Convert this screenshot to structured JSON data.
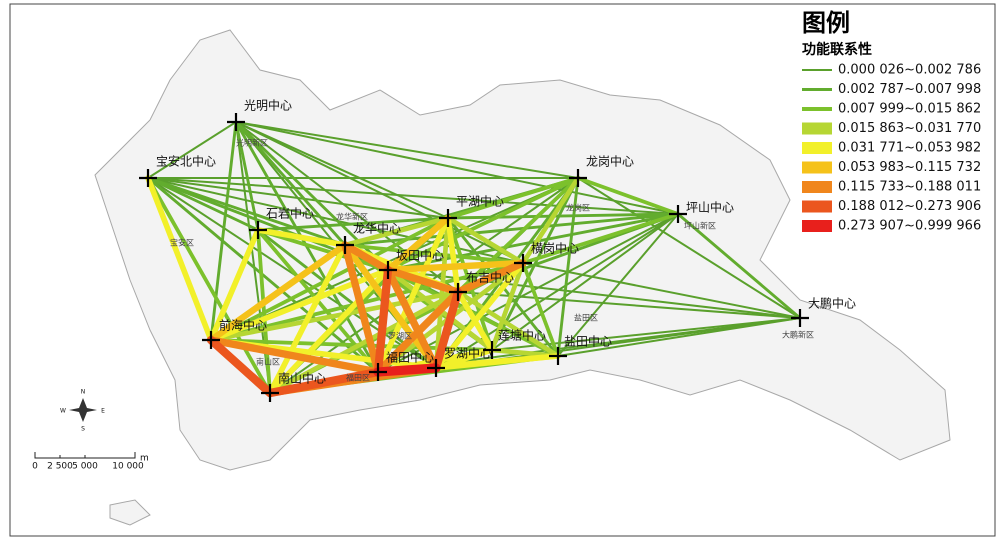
{
  "legend": {
    "title": "图例",
    "subtitle": "功能联系性",
    "items": [
      {
        "label": "0.000 026~0.002 786",
        "color": "#5aa02c"
      },
      {
        "label": "0.002 787~0.007 998",
        "color": "#62ac2e"
      },
      {
        "label": "0.007 999~0.015 862",
        "color": "#7cc12c"
      },
      {
        "label": "0.015 863~0.031 770",
        "color": "#b6d633"
      },
      {
        "label": "0.031 771~0.053 982",
        "color": "#f2f02a"
      },
      {
        "label": "0.053 983~0.115 732",
        "color": "#f5c21a"
      },
      {
        "label": "0.115 733~0.188 011",
        "color": "#f0861c"
      },
      {
        "label": "0.188 012~0.273 906",
        "color": "#eb561e"
      },
      {
        "label": "0.273 907~0.999 966",
        "color": "#e8201c"
      }
    ]
  },
  "nodes": [
    "光明中心",
    "宝安北中心",
    "石岩中心",
    "龙华中心",
    "平湖中心",
    "龙岗中心",
    "坪山中心",
    "坂田中心",
    "布吉中心",
    "横岗中心",
    "前海中心",
    "南山中心",
    "福田中心",
    "罗湖中心",
    "莲塘中心",
    "盐田中心",
    "大鹏中心"
  ],
  "districts": [
    "光明新区",
    "宝安区",
    "龙华新区",
    "龙岗区",
    "坪山新区",
    "大鹏新区",
    "盐田区",
    "罗湖区",
    "福田区",
    "南山区"
  ],
  "links": [
    [
      0,
      1,
      0
    ],
    [
      0,
      2,
      1
    ],
    [
      0,
      3,
      1
    ],
    [
      0,
      4,
      0
    ],
    [
      0,
      5,
      0
    ],
    [
      0,
      6,
      0
    ],
    [
      0,
      7,
      1
    ],
    [
      0,
      10,
      1
    ],
    [
      0,
      11,
      0
    ],
    [
      0,
      12,
      1
    ],
    [
      0,
      13,
      0
    ],
    [
      0,
      9,
      0
    ],
    [
      0,
      8,
      0
    ],
    [
      1,
      2,
      1
    ],
    [
      1,
      3,
      1
    ],
    [
      1,
      4,
      0
    ],
    [
      1,
      5,
      0
    ],
    [
      1,
      6,
      0
    ],
    [
      1,
      10,
      4
    ],
    [
      1,
      11,
      2
    ],
    [
      1,
      12,
      1
    ],
    [
      1,
      7,
      1
    ],
    [
      1,
      13,
      0
    ],
    [
      1,
      9,
      0
    ],
    [
      2,
      3,
      4
    ],
    [
      2,
      10,
      4
    ],
    [
      2,
      11,
      2
    ],
    [
      2,
      12,
      2
    ],
    [
      2,
      7,
      2
    ],
    [
      2,
      4,
      1
    ],
    [
      2,
      13,
      1
    ],
    [
      2,
      8,
      1
    ],
    [
      3,
      7,
      6
    ],
    [
      3,
      12,
      6
    ],
    [
      3,
      10,
      5
    ],
    [
      3,
      11,
      4
    ],
    [
      3,
      13,
      5
    ],
    [
      3,
      4,
      3
    ],
    [
      3,
      8,
      4
    ],
    [
      3,
      9,
      2
    ],
    [
      3,
      14,
      2
    ],
    [
      3,
      5,
      1
    ],
    [
      3,
      6,
      1
    ],
    [
      3,
      15,
      1
    ],
    [
      4,
      7,
      5
    ],
    [
      4,
      8,
      4
    ],
    [
      4,
      12,
      4
    ],
    [
      4,
      13,
      3
    ],
    [
      4,
      9,
      3
    ],
    [
      4,
      5,
      2
    ],
    [
      4,
      6,
      1
    ],
    [
      4,
      11,
      2
    ],
    [
      4,
      10,
      2
    ],
    [
      4,
      14,
      2
    ],
    [
      4,
      15,
      1
    ],
    [
      5,
      6,
      2
    ],
    [
      5,
      9,
      3
    ],
    [
      5,
      8,
      2
    ],
    [
      5,
      7,
      2
    ],
    [
      5,
      12,
      1
    ],
    [
      5,
      13,
      1
    ],
    [
      5,
      16,
      0
    ],
    [
      5,
      15,
      1
    ],
    [
      5,
      14,
      1
    ],
    [
      5,
      11,
      0
    ],
    [
      5,
      10,
      0
    ],
    [
      6,
      9,
      2
    ],
    [
      6,
      16,
      1
    ],
    [
      6,
      8,
      1
    ],
    [
      6,
      7,
      1
    ],
    [
      6,
      12,
      0
    ],
    [
      6,
      13,
      0
    ],
    [
      6,
      15,
      0
    ],
    [
      6,
      14,
      0
    ],
    [
      7,
      8,
      6
    ],
    [
      7,
      12,
      7
    ],
    [
      7,
      13,
      6
    ],
    [
      7,
      9,
      5
    ],
    [
      7,
      11,
      4
    ],
    [
      7,
      10,
      4
    ],
    [
      7,
      14,
      3
    ],
    [
      7,
      15,
      2
    ],
    [
      8,
      13,
      7
    ],
    [
      8,
      12,
      6
    ],
    [
      8,
      9,
      6
    ],
    [
      8,
      14,
      4
    ],
    [
      8,
      15,
      3
    ],
    [
      8,
      11,
      3
    ],
    [
      8,
      10,
      3
    ],
    [
      9,
      13,
      4
    ],
    [
      9,
      12,
      3
    ],
    [
      9,
      14,
      3
    ],
    [
      9,
      15,
      2
    ],
    [
      9,
      16,
      0
    ],
    [
      9,
      11,
      2
    ],
    [
      9,
      10,
      2
    ],
    [
      10,
      11,
      7
    ],
    [
      10,
      12,
      6
    ],
    [
      10,
      13,
      4
    ],
    [
      10,
      14,
      2
    ],
    [
      11,
      12,
      7
    ],
    [
      11,
      13,
      6
    ],
    [
      11,
      14,
      3
    ],
    [
      11,
      15,
      2
    ],
    [
      12,
      13,
      8
    ],
    [
      12,
      14,
      4
    ],
    [
      12,
      15,
      4
    ],
    [
      12,
      16,
      0
    ],
    [
      13,
      14,
      4
    ],
    [
      13,
      15,
      4
    ],
    [
      13,
      16,
      0
    ],
    [
      14,
      15,
      3
    ],
    [
      14,
      16,
      0
    ],
    [
      15,
      16,
      0
    ],
    [
      8,
      16,
      0
    ],
    [
      7,
      16,
      0
    ]
  ],
  "scale_bar": {
    "ticks": [
      "0",
      "2 500",
      "5 000",
      "10 000"
    ],
    "unit": "m"
  },
  "compass": [
    "N",
    "S",
    "W",
    "E"
  ]
}
